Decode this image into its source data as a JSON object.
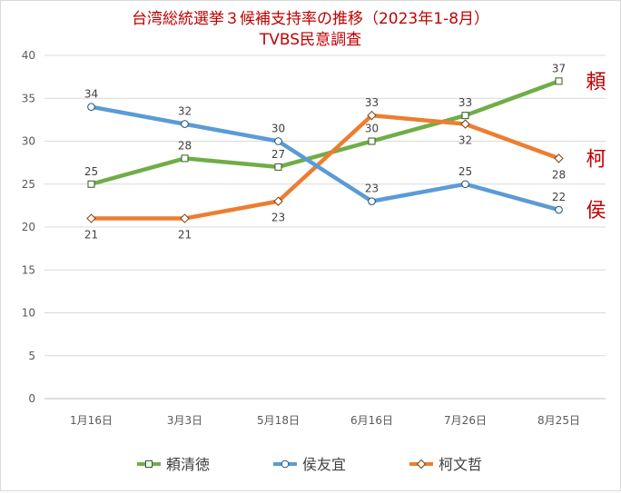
{
  "chart_data": {
    "type": "line",
    "title": "台湾総統選挙３候補支持率の推移（2023年1-8月）",
    "subtitle": "TVBS民意調査",
    "categories": [
      "1月16日",
      "3月3日",
      "5月18日",
      "6月16日",
      "7月26日",
      "8月25日"
    ],
    "ylim": [
      0,
      40
    ],
    "yticks": [
      0,
      5,
      10,
      15,
      20,
      25,
      30,
      35,
      40
    ],
    "grid": true,
    "legend_position": "bottom",
    "series": [
      {
        "name": "頼清徳",
        "values": [
          25,
          28,
          27,
          30,
          33,
          37
        ],
        "color": "#70ad47",
        "marker": "square",
        "label_pos": [
          "above",
          "above",
          "above",
          "above",
          "above",
          "above"
        ],
        "end_label": "頼"
      },
      {
        "name": "侯友宜",
        "values": [
          34,
          32,
          30,
          23,
          25,
          22
        ],
        "color": "#5b9bd5",
        "marker": "circle",
        "label_pos": [
          "above",
          "above",
          "above",
          "above",
          "above",
          "above"
        ],
        "end_label": "侯"
      },
      {
        "name": "柯文哲",
        "values": [
          21,
          21,
          23,
          33,
          32,
          28
        ],
        "color": "#ed7d31",
        "marker": "diamond",
        "label_pos": [
          "below",
          "below",
          "below",
          "above",
          "below",
          "below"
        ],
        "end_label": "柯"
      }
    ],
    "side_label_color": "#c00000"
  }
}
